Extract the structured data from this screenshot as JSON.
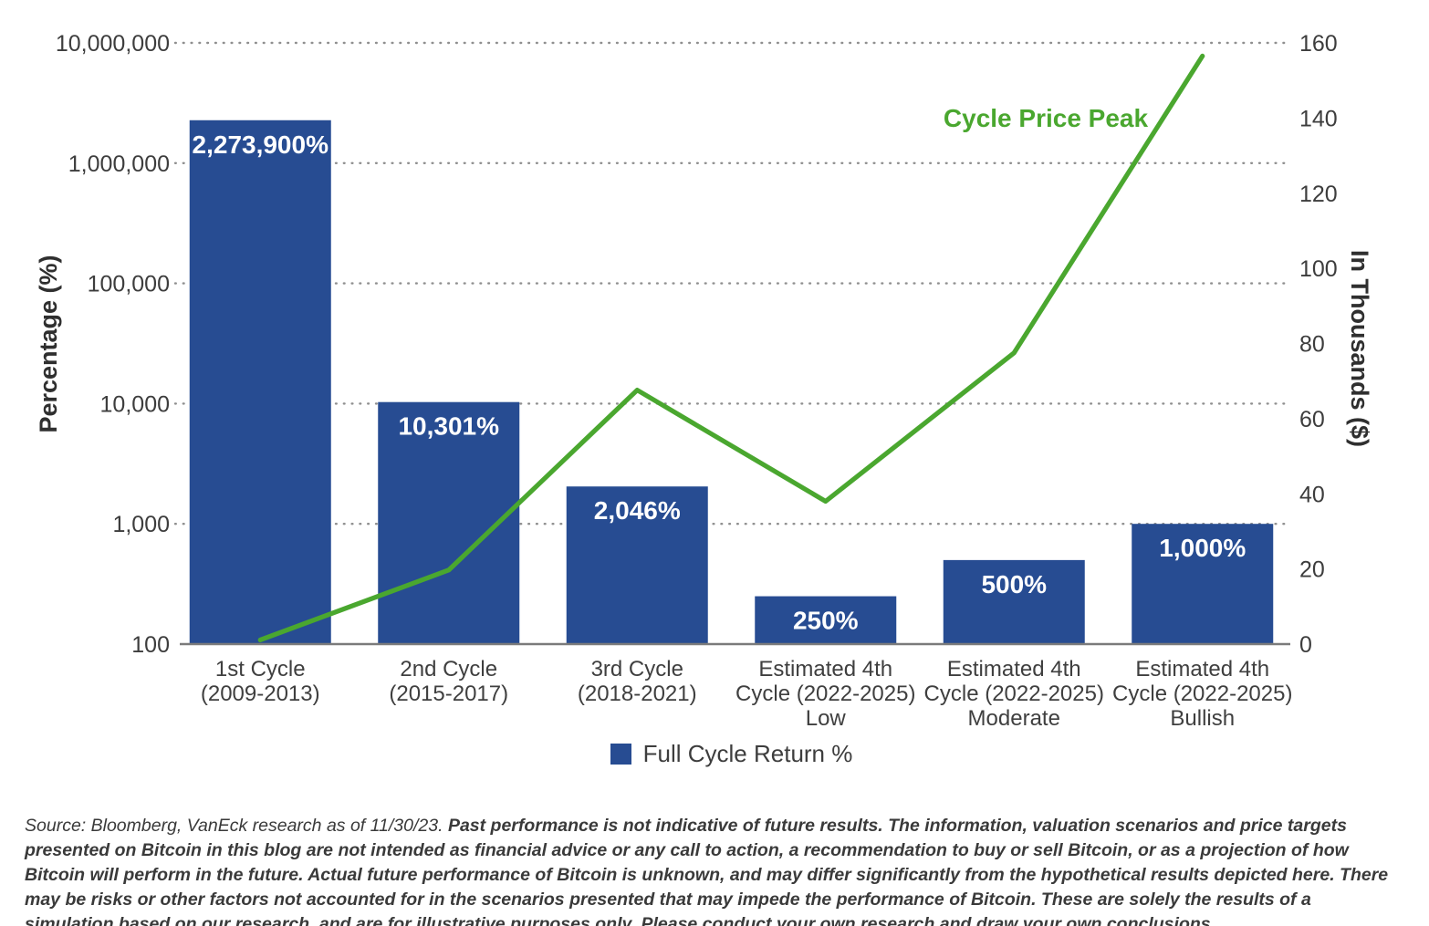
{
  "chart_data": {
    "type": "combo-bar-line",
    "categories": [
      [
        "1st Cycle",
        "(2009-2013)"
      ],
      [
        "2nd Cycle",
        "(2015-2017)"
      ],
      [
        "3rd Cycle",
        "(2018-2021)"
      ],
      [
        "Estimated 4th",
        "Cycle (2022-2025)",
        "Low"
      ],
      [
        "Estimated 4th",
        "Cycle (2022-2025)",
        "Moderate"
      ],
      [
        "Estimated 4th",
        "Cycle (2022-2025)",
        "Bullish"
      ]
    ],
    "bar_series": {
      "name": "Full Cycle Return %",
      "color": "#274c92",
      "label_color": "#ffffff",
      "values_percent": [
        2273900,
        10301,
        2046,
        250,
        500,
        1000
      ],
      "labels": [
        "2,273,900%",
        "10,301%",
        "2,046%",
        "250%",
        "500%",
        "1,000%"
      ]
    },
    "line_series": {
      "name": "Cycle Price Peak",
      "color": "#4aa72f",
      "values_thousands": [
        1.1,
        19.7,
        67.6,
        38,
        77.5,
        156.5
      ]
    },
    "left_axis": {
      "title": "Percentage (%)",
      "scale": "log",
      "ticks": [
        "100",
        "1,000",
        "10,000",
        "100,000",
        "1,000,000",
        "10,000,000"
      ],
      "range": [
        100,
        10000000
      ]
    },
    "right_axis": {
      "title": "In Thousands ($)",
      "scale": "linear",
      "ticks": [
        "0",
        "20",
        "40",
        "60",
        "80",
        "100",
        "120",
        "140",
        "160"
      ],
      "range": [
        0,
        160
      ]
    },
    "annotation": {
      "text": "Cycle Price Peak"
    },
    "legend": {
      "position": "bottom-center"
    },
    "grid": {
      "horizontal": "dotted"
    }
  },
  "footer": {
    "source_text": "Source: Bloomberg, VanEck research as of 11/30/23. ",
    "disclaimer_text": "Past performance is not indicative of future results. The information, valuation scenarios and price targets presented on Bitcoin in this blog are not intended as financial advice or any call to action, a recommendation to buy or sell Bitcoin, or as a projection of how Bitcoin will perform in the future. Actual future performance of Bitcoin is unknown, and may differ significantly from the hypothetical results depicted here. There may be risks or other factors not accounted for in the scenarios presented that may impede the performance of Bitcoin. These are solely the results of a simulation based on our research, and are for illustrative purposes only. Please conduct your own research and draw your own conclusions."
  }
}
